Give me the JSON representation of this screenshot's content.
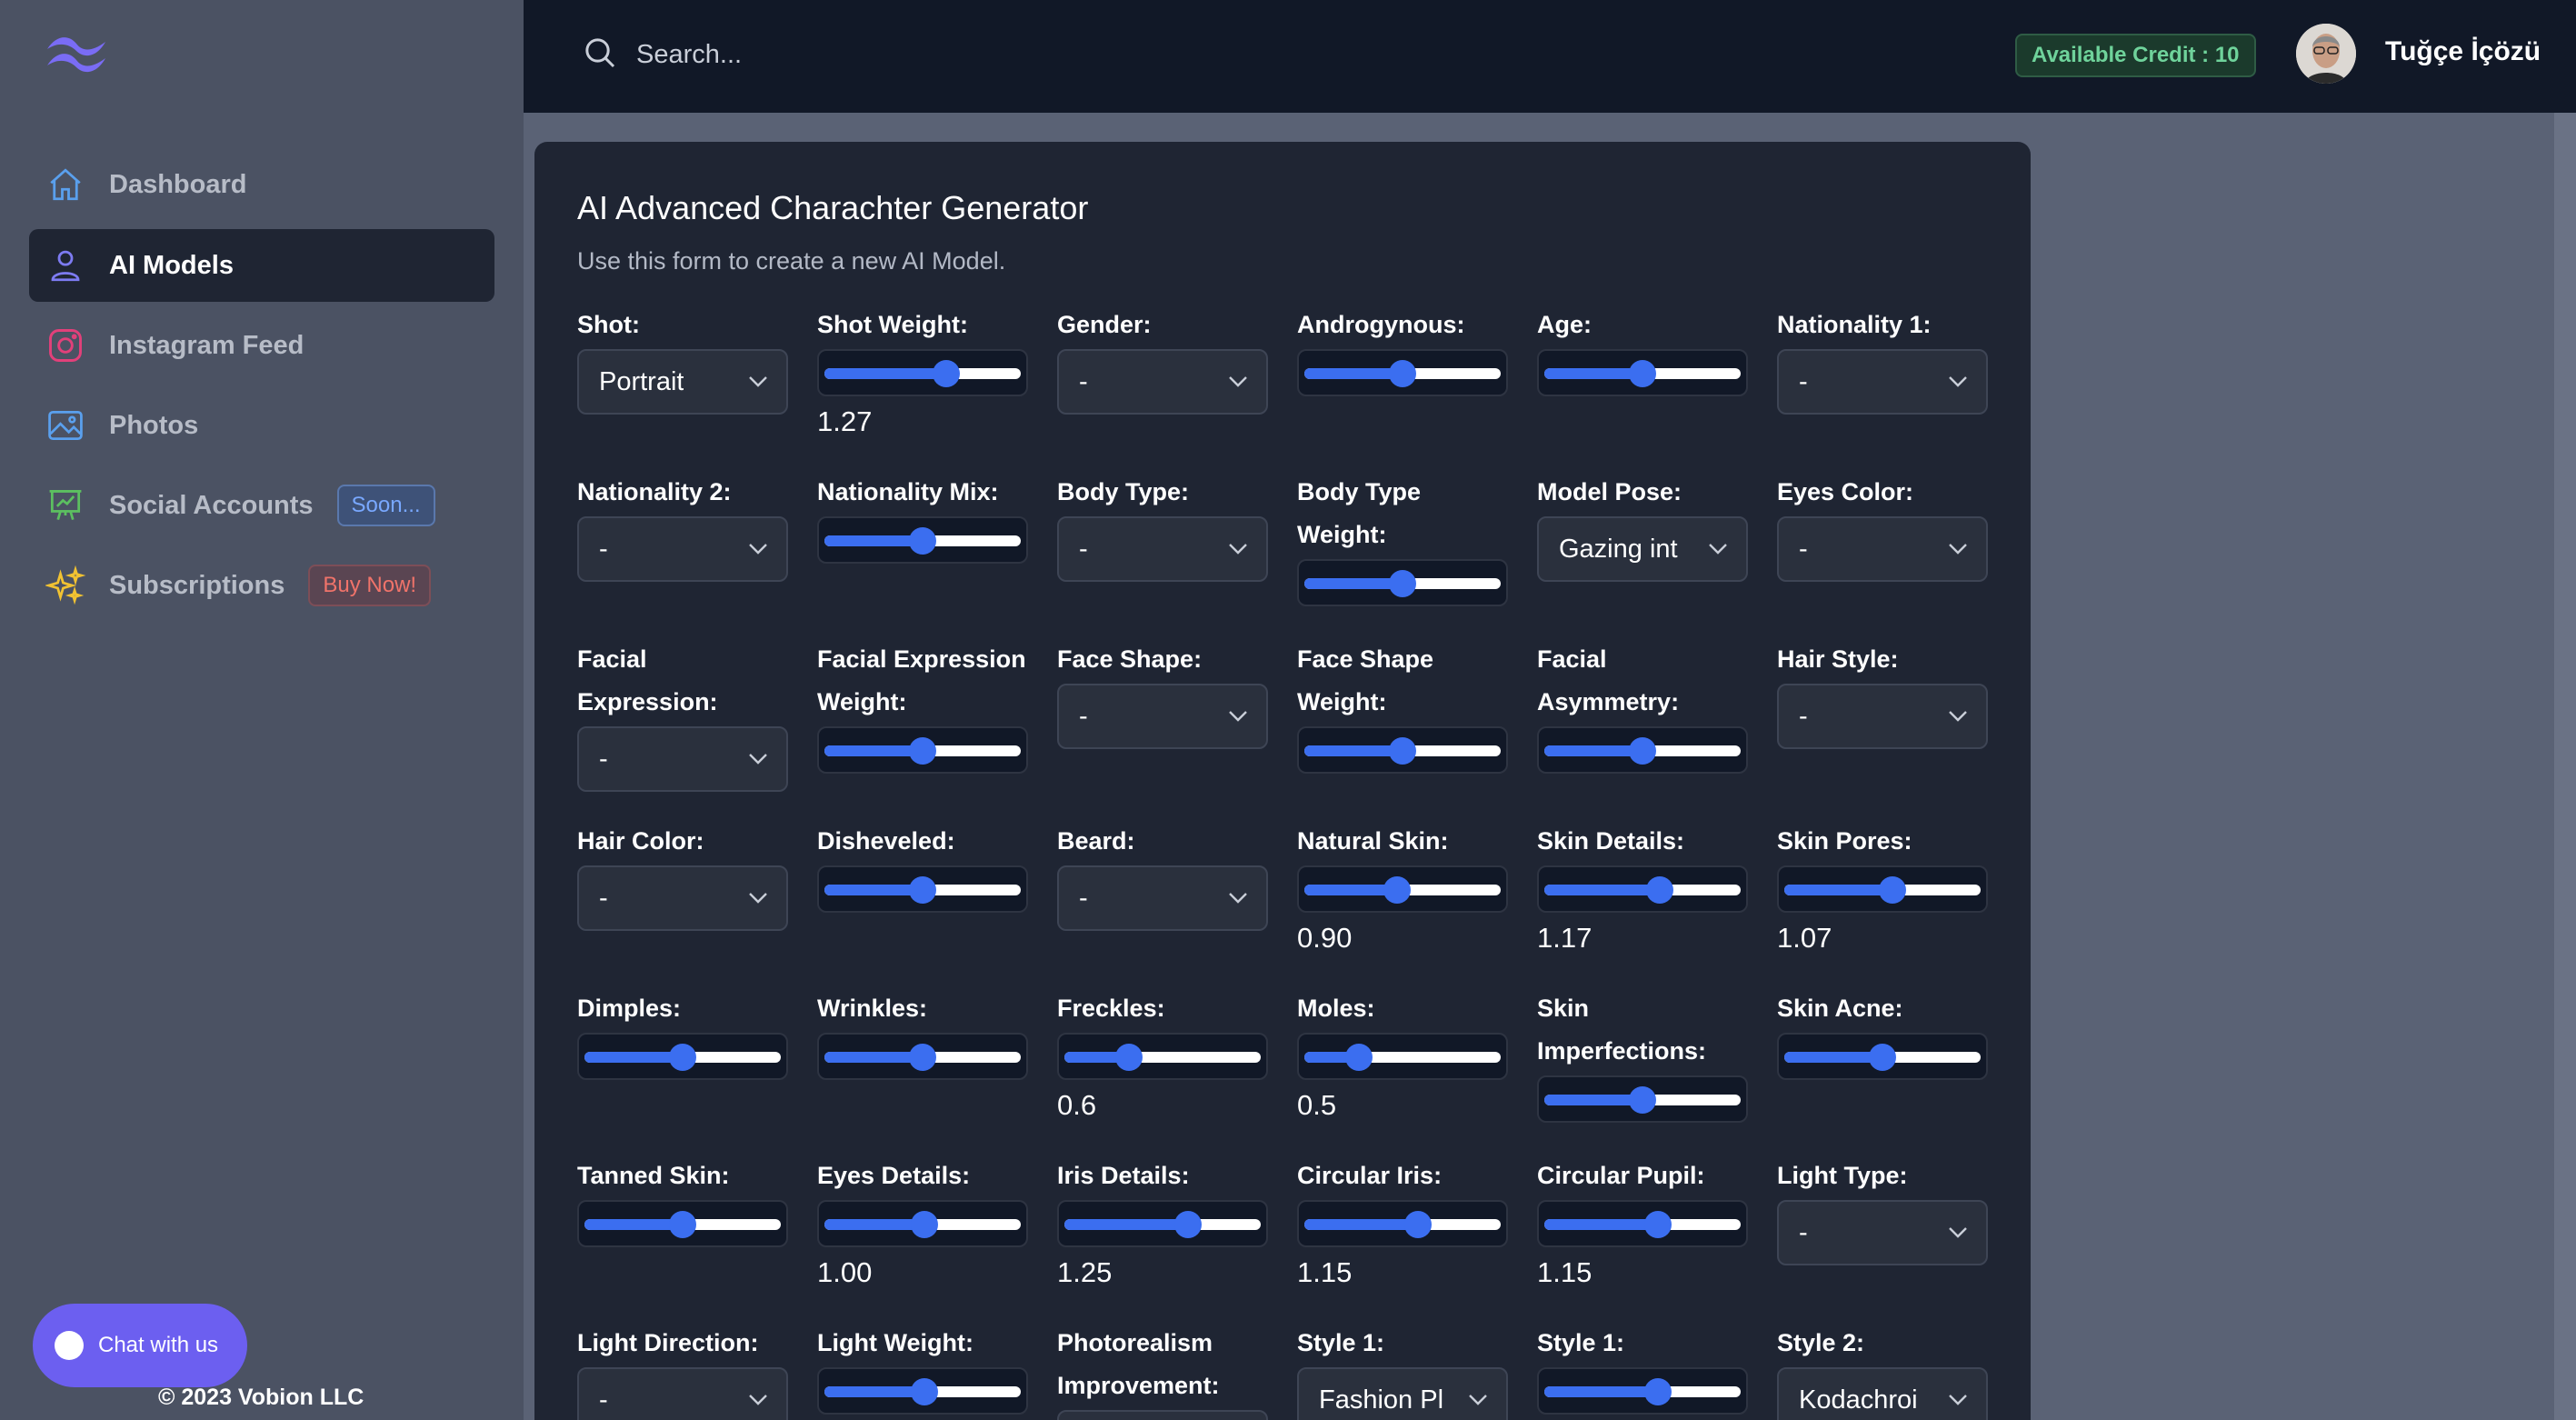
{
  "sidebar": {
    "items": [
      {
        "label": "Dashboard",
        "icon": "home-icon",
        "active": false
      },
      {
        "label": "AI Models",
        "icon": "user-icon",
        "active": true
      },
      {
        "label": "Instagram Feed",
        "icon": "instagram-icon",
        "active": false
      },
      {
        "label": "Photos",
        "icon": "photo-icon",
        "active": false
      },
      {
        "label": "Social Accounts",
        "icon": "chart-board-icon",
        "active": false,
        "badge": "Soon..."
      },
      {
        "label": "Subscriptions",
        "icon": "sparkles-icon",
        "active": false,
        "badge": "Buy Now!"
      }
    ],
    "chat_label": "Chat with us",
    "copyright": "© 2023 Vobion LLC"
  },
  "header": {
    "search_placeholder": "Search...",
    "credit": "Available Credit : 10",
    "username": "Tuğçe İçözü"
  },
  "form": {
    "title": "AI Advanced Charachter Generator",
    "subtitle": "Use this form to create a new AI Model.",
    "rows": [
      [
        {
          "label": "Shot:",
          "type": "select",
          "value": "Portrait"
        },
        {
          "label": "Shot Weight:",
          "type": "slider",
          "level": 0.62,
          "value": "1.27"
        },
        {
          "label": "Gender:",
          "type": "select",
          "value": "-"
        },
        {
          "label": "Androgynous:",
          "type": "slider",
          "level": 0.5
        },
        {
          "label": "Age:",
          "type": "slider",
          "level": 0.5
        },
        {
          "label": "Nationality 1:",
          "type": "select",
          "value": "-"
        }
      ],
      [
        {
          "label": "Nationality 2:",
          "type": "select",
          "value": "-"
        },
        {
          "label": "Nationality Mix:",
          "type": "slider",
          "level": 0.5
        },
        {
          "label": "Body Type:",
          "type": "select",
          "value": "-"
        },
        {
          "label": "Body Type Weight:",
          "type": "slider",
          "level": 0.5,
          "wrap": true
        },
        {
          "label": "Model Pose:",
          "type": "select",
          "value": "Gazing int"
        },
        {
          "label": "Eyes Color:",
          "type": "select",
          "value": "-"
        }
      ],
      [
        {
          "label": "Facial Expression:",
          "type": "select",
          "value": "-",
          "wrap": true
        },
        {
          "label": "Facial Expression Weight:",
          "type": "slider",
          "level": 0.5,
          "wrap": true
        },
        {
          "label": "Face Shape:",
          "type": "select",
          "value": "-"
        },
        {
          "label": "Face Shape Weight:",
          "type": "slider",
          "level": 0.5,
          "wrap": true
        },
        {
          "label": "Facial Asymmetry:",
          "type": "slider",
          "level": 0.5,
          "wrap": true
        },
        {
          "label": "Hair Style:",
          "type": "select",
          "value": "-"
        }
      ],
      [
        {
          "label": "Hair Color:",
          "type": "select",
          "value": "-"
        },
        {
          "label": "Disheveled:",
          "type": "slider",
          "level": 0.5
        },
        {
          "label": "Beard:",
          "type": "select",
          "value": "-"
        },
        {
          "label": "Natural Skin:",
          "type": "slider",
          "level": 0.47,
          "value": "0.90"
        },
        {
          "label": "Skin Details:",
          "type": "slider",
          "level": 0.59,
          "value": "1.17"
        },
        {
          "label": "Skin Pores:",
          "type": "slider",
          "level": 0.55,
          "value": "1.07"
        }
      ],
      [
        {
          "label": "Dimples:",
          "type": "slider",
          "level": 0.5
        },
        {
          "label": "Wrinkles:",
          "type": "slider",
          "level": 0.5
        },
        {
          "label": "Freckles:",
          "type": "slider",
          "level": 0.33,
          "value": "0.6"
        },
        {
          "label": "Moles:",
          "type": "slider",
          "level": 0.28,
          "value": "0.5"
        },
        {
          "label": "Skin Imperfections:",
          "type": "slider",
          "level": 0.5,
          "wrap": true
        },
        {
          "label": "Skin Acne:",
          "type": "slider",
          "level": 0.5
        }
      ],
      [
        {
          "label": "Tanned Skin:",
          "type": "slider",
          "level": 0.5
        },
        {
          "label": "Eyes Details:",
          "type": "slider",
          "level": 0.51,
          "value": "1.00"
        },
        {
          "label": "Iris Details:",
          "type": "slider",
          "level": 0.63,
          "value": "1.25"
        },
        {
          "label": "Circular Iris:",
          "type": "slider",
          "level": 0.58,
          "value": "1.15"
        },
        {
          "label": "Circular Pupil:",
          "type": "slider",
          "level": 0.58,
          "value": "1.15"
        },
        {
          "label": "Light Type:",
          "type": "select",
          "value": "-"
        }
      ],
      [
        {
          "label": "Light Direction:",
          "type": "select",
          "value": "-"
        },
        {
          "label": "Light Weight:",
          "type": "slider",
          "level": 0.51
        },
        {
          "label": "Photorealism Improvement:",
          "type": "select",
          "value": "",
          "wrap": true
        },
        {
          "label": "Style 1:",
          "type": "select",
          "value": "Fashion Pl"
        },
        {
          "label": "Style 1:",
          "type": "slider",
          "level": 0.58
        },
        {
          "label": "Style 2:",
          "type": "select",
          "value": "Kodachroi"
        }
      ]
    ]
  }
}
